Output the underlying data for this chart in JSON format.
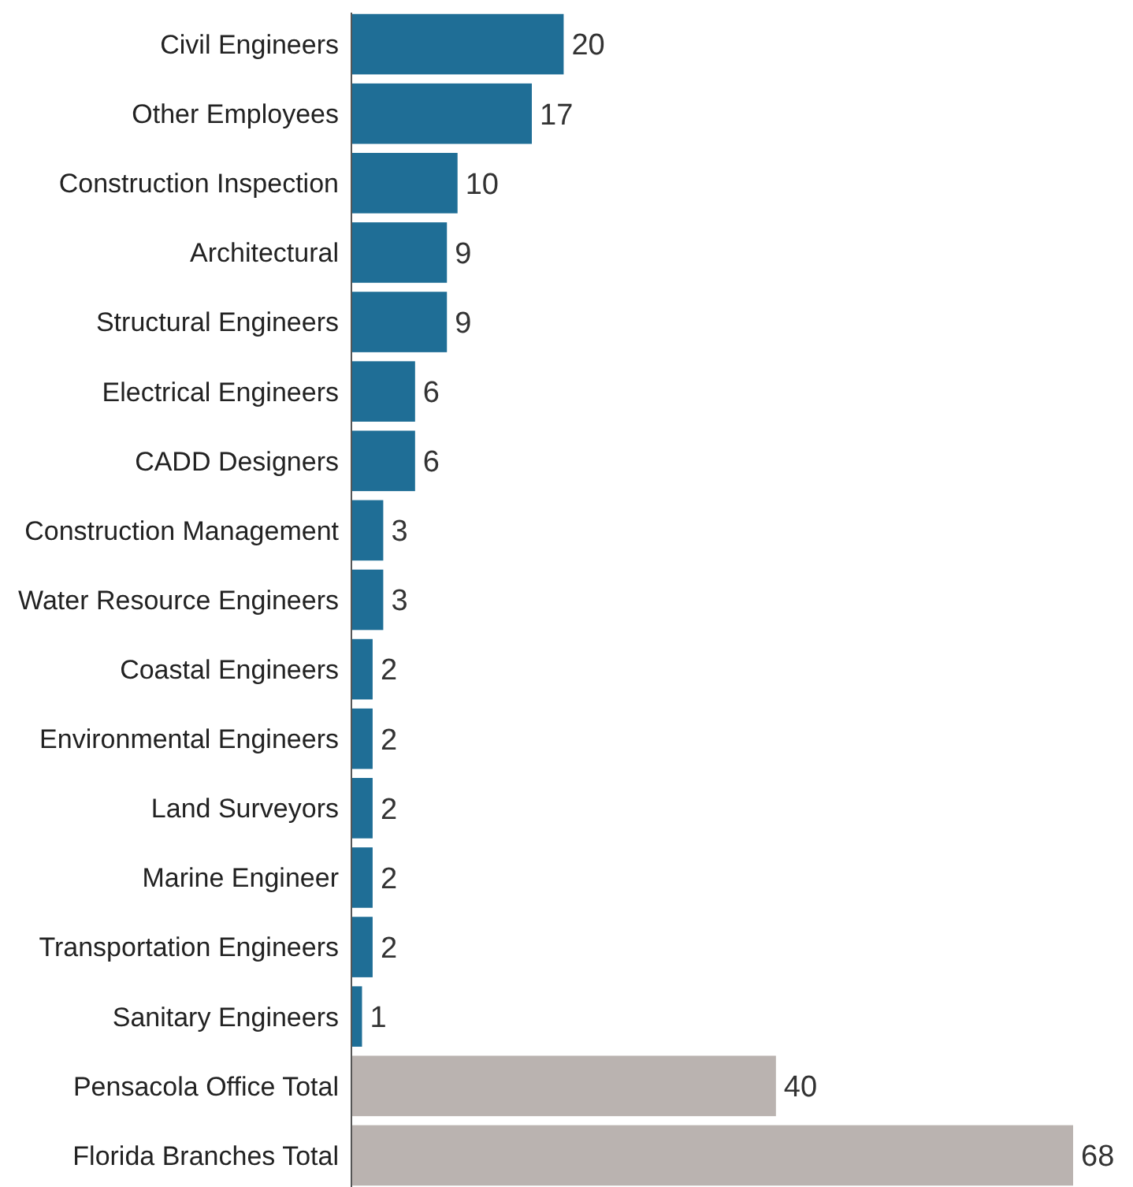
{
  "chart_data": {
    "type": "bar",
    "orientation": "horizontal",
    "data_labels": true,
    "categories": [
      "Civil Engineers",
      "Other Employees",
      "Construction Inspection",
      "Architectural",
      "Structural Engineers",
      "Electrical Engineers",
      "CADD Designers",
      "Construction Management",
      "Water Resource Engineers",
      "Coastal Engineers",
      "Environmental Engineers",
      "Land Surveyors",
      "Marine Engineer",
      "Transportation Engineers",
      "Sanitary Engineers",
      "Pensacola Office Total",
      "Florida Branches Total"
    ],
    "values": [
      20,
      17,
      10,
      9,
      9,
      6,
      6,
      3,
      3,
      2,
      2,
      2,
      2,
      2,
      1,
      40,
      68
    ],
    "colors": [
      "#1f6e96",
      "#1f6e96",
      "#1f6e96",
      "#1f6e96",
      "#1f6e96",
      "#1f6e96",
      "#1f6e96",
      "#1f6e96",
      "#1f6e96",
      "#1f6e96",
      "#1f6e96",
      "#1f6e96",
      "#1f6e96",
      "#1f6e96",
      "#1f6e96",
      "#bab3b0",
      "#bab3b0"
    ]
  }
}
